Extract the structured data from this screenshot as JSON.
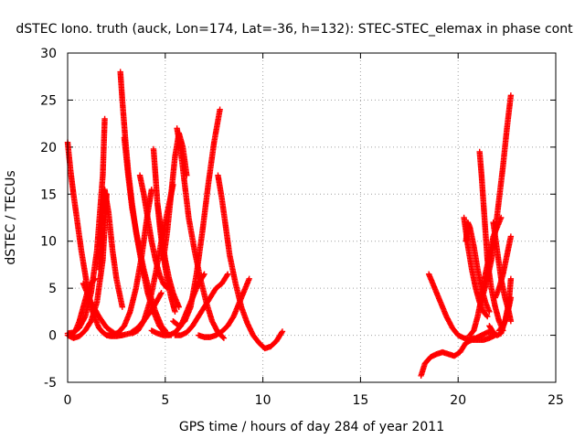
{
  "chart_data": {
    "type": "scatter",
    "title": "dSTEC Iono. truth (auck, Lon=174, Lat=-36, h=132): STEC-STEC_elemax in phase cont",
    "xlabel": "GPS time / hours of day 284 of year 2011",
    "ylabel": "dSTEC  / TECUs",
    "xlim": [
      0,
      25
    ],
    "ylim": [
      -5,
      30
    ],
    "xticks": [
      "0",
      "5",
      "10",
      "15",
      "20",
      "25"
    ],
    "yticks": [
      "-5",
      "0",
      "5",
      "10",
      "15",
      "20",
      "25",
      "30"
    ],
    "grid": true,
    "legend": "none",
    "marker": "plus",
    "color": "#ff0000",
    "series": [
      {
        "x": [
          0.0,
          0.15,
          0.3,
          0.5,
          0.7,
          0.9,
          1.05,
          1.2,
          1.4,
          1.6,
          1.8,
          2.0,
          2.2,
          2.5,
          2.8
        ],
        "y": [
          20.5,
          17.5,
          15.0,
          12.0,
          9.0,
          6.5,
          4.5,
          3.0,
          1.8,
          0.8,
          0.3,
          0.0,
          -0.1,
          -0.1,
          0.0
        ]
      },
      {
        "x": [
          0.0,
          0.3,
          0.6,
          0.9,
          1.2,
          1.5,
          1.8,
          2.0
        ],
        "y": [
          0.0,
          -0.3,
          -0.1,
          0.5,
          1.5,
          3.5,
          8.0,
          15.0
        ]
      },
      {
        "x": [
          1.6,
          1.75,
          1.9,
          2.1,
          2.3,
          2.5,
          2.8
        ],
        "y": [
          7.0,
          12.0,
          15.5,
          13.0,
          9.0,
          6.0,
          3.0
        ]
      },
      {
        "x": [
          0.0,
          0.3,
          0.6,
          0.9,
          1.2,
          1.5,
          1.8,
          1.9
        ],
        "y": [
          0.2,
          0.3,
          0.8,
          2.0,
          4.5,
          9.0,
          17.0,
          23.0
        ]
      },
      {
        "x": [
          0.2,
          0.4,
          0.6,
          0.8,
          1.0,
          1.2,
          1.4
        ],
        "y": [
          0.0,
          0.5,
          1.5,
          3.0,
          4.5,
          5.5,
          6.0
        ]
      },
      {
        "x": [
          0.8,
          1.2,
          1.6,
          2.0,
          2.4,
          2.8,
          3.2,
          3.6,
          4.0,
          4.4,
          4.8
        ],
        "y": [
          5.5,
          3.5,
          2.0,
          0.8,
          0.2,
          0.0,
          0.2,
          0.8,
          1.8,
          3.0,
          4.5
        ]
      },
      {
        "x": [
          2.7,
          2.8,
          2.95,
          3.1,
          3.3,
          3.5,
          3.8,
          4.1,
          4.4,
          4.7,
          5.0,
          5.3
        ],
        "y": [
          28.0,
          25.0,
          21.0,
          17.5,
          14.0,
          11.0,
          7.5,
          4.5,
          2.5,
          1.0,
          0.2,
          0.0
        ]
      },
      {
        "x": [
          2.0,
          2.3,
          2.6,
          2.9,
          3.2,
          3.5,
          3.8,
          4.1,
          4.3
        ],
        "y": [
          0.0,
          0.0,
          0.3,
          1.0,
          2.5,
          5.0,
          8.5,
          13.0,
          15.5
        ]
      },
      {
        "x": [
          2.9,
          3.1,
          3.3,
          3.6,
          3.9,
          4.2,
          4.5,
          4.8,
          5.0
        ],
        "y": [
          21.0,
          17.0,
          13.5,
          10.0,
          7.0,
          4.5,
          2.5,
          1.0,
          0.5
        ]
      },
      {
        "x": [
          4.4,
          4.5,
          4.6,
          4.75,
          4.9,
          5.1,
          5.3,
          5.5
        ],
        "y": [
          19.8,
          17.0,
          14.0,
          11.0,
          8.5,
          6.0,
          4.0,
          2.5
        ]
      },
      {
        "x": [
          3.3,
          3.6,
          3.9,
          4.2,
          4.5,
          4.8,
          5.1,
          5.4
        ],
        "y": [
          0.2,
          0.5,
          1.5,
          3.5,
          6.5,
          10.0,
          13.0,
          16.0
        ]
      },
      {
        "x": [
          3.7,
          3.9,
          4.1,
          4.3,
          4.5,
          4.7,
          4.9,
          5.1
        ],
        "y": [
          17.0,
          15.0,
          12.5,
          10.0,
          8.0,
          6.5,
          5.5,
          5.0
        ]
      },
      {
        "x": [
          4.3,
          4.6,
          4.9,
          5.2,
          5.5,
          5.8,
          6.1,
          6.4,
          6.7,
          7.0
        ],
        "y": [
          0.5,
          0.2,
          0.0,
          0.0,
          0.3,
          1.0,
          2.5,
          4.0,
          5.5,
          6.5
        ]
      },
      {
        "x": [
          4.6,
          4.8,
          5.0,
          5.2,
          5.4,
          5.6,
          5.7
        ],
        "y": [
          14.0,
          11.0,
          8.0,
          6.0,
          4.5,
          3.5,
          3.0
        ]
      },
      {
        "x": [
          4.9,
          5.1,
          5.3,
          5.5,
          5.7,
          5.9,
          6.1
        ],
        "y": [
          8.0,
          11.0,
          15.0,
          19.0,
          21.5,
          20.0,
          17.0
        ]
      },
      {
        "x": [
          5.6,
          5.8,
          6.0,
          6.2,
          6.5,
          6.8,
          7.1,
          7.4,
          7.7,
          8.0
        ],
        "y": [
          22.0,
          19.5,
          16.0,
          12.5,
          9.0,
          6.0,
          3.5,
          1.5,
          0.3,
          -0.3
        ]
      },
      {
        "x": [
          5.4,
          5.7,
          6.0,
          6.3,
          6.6,
          6.9,
          7.2,
          7.5,
          7.8
        ],
        "y": [
          1.5,
          1.0,
          1.5,
          3.0,
          6.5,
          11.0,
          16.0,
          20.5,
          24.0
        ]
      },
      {
        "x": [
          5.5,
          5.8,
          6.1,
          6.4,
          6.7,
          7.0,
          7.3,
          7.6,
          7.9,
          8.2
        ],
        "y": [
          0.0,
          0.0,
          0.3,
          1.0,
          2.0,
          3.0,
          4.0,
          5.0,
          5.5,
          6.5
        ]
      },
      {
        "x": [
          7.7,
          7.9,
          8.1,
          8.3,
          8.6,
          8.9,
          9.2,
          9.5,
          9.8,
          10.1,
          10.4,
          10.7,
          11.0
        ],
        "y": [
          17.0,
          14.5,
          11.5,
          8.5,
          5.5,
          3.0,
          1.3,
          0.0,
          -0.8,
          -1.4,
          -1.2,
          -0.6,
          0.4
        ]
      },
      {
        "x": [
          6.7,
          7.0,
          7.3,
          7.6,
          7.9,
          8.2,
          8.5,
          8.8,
          9.1,
          9.3
        ],
        "y": [
          0.0,
          -0.2,
          -0.2,
          0.0,
          0.4,
          1.0,
          2.0,
          3.5,
          5.0,
          6.0
        ]
      },
      {
        "x": [
          18.1,
          18.3,
          18.6,
          18.9,
          19.2,
          19.5,
          19.8,
          20.1,
          20.4,
          20.7,
          21.0,
          21.3,
          21.6,
          21.9
        ],
        "y": [
          -4.3,
          -3.0,
          -2.3,
          -2.0,
          -1.8,
          -2.0,
          -2.2,
          -1.8,
          -0.8,
          -0.5,
          -0.5,
          -0.5,
          -0.3,
          0.0
        ]
      },
      {
        "x": [
          18.5,
          18.8,
          19.1,
          19.4,
          19.7,
          20.0,
          20.3,
          20.6,
          20.9,
          21.2,
          21.5,
          21.8,
          22.0
        ],
        "y": [
          6.5,
          5.0,
          3.5,
          2.0,
          0.8,
          0.0,
          -0.3,
          -0.4,
          -0.3,
          0.0,
          0.3,
          0.3,
          0.0
        ]
      },
      {
        "x": [
          20.3,
          20.5,
          20.7,
          20.9,
          21.1,
          21.3,
          21.5
        ],
        "y": [
          12.5,
          9.5,
          7.0,
          5.0,
          3.5,
          2.5,
          2.0
        ]
      },
      {
        "x": [
          20.4,
          20.5,
          20.6,
          20.8,
          21.0,
          21.2,
          21.4,
          21.6
        ],
        "y": [
          10.0,
          12.0,
          11.5,
          9.5,
          7.0,
          5.0,
          3.5,
          2.5
        ]
      },
      {
        "x": [
          20.6,
          20.8,
          21.0,
          21.2,
          21.4,
          21.6,
          21.8,
          22.0,
          22.2
        ],
        "y": [
          0.0,
          0.5,
          2.0,
          4.0,
          6.5,
          8.5,
          10.5,
          11.5,
          12.5
        ]
      },
      {
        "x": [
          21.1,
          21.2,
          21.3,
          21.4,
          21.5,
          21.7,
          21.9,
          22.1,
          22.3
        ],
        "y": [
          19.5,
          17.0,
          14.0,
          11.0,
          8.0,
          5.0,
          3.0,
          1.5,
          0.5
        ]
      },
      {
        "x": [
          21.3,
          21.5,
          21.7,
          21.9,
          22.1,
          22.3,
          22.5,
          22.7
        ],
        "y": [
          4.5,
          6.0,
          8.0,
          11.0,
          14.5,
          18.0,
          22.0,
          25.5
        ]
      },
      {
        "x": [
          21.6,
          21.8,
          22.0,
          22.2,
          22.4,
          22.6,
          22.7
        ],
        "y": [
          1.0,
          0.3,
          0.0,
          0.2,
          1.5,
          3.5,
          6.0
        ]
      },
      {
        "x": [
          21.8,
          22.0,
          22.2,
          22.4,
          22.6,
          22.7
        ],
        "y": [
          12.0,
          9.0,
          6.0,
          4.0,
          2.5,
          1.5
        ]
      },
      {
        "x": [
          21.9,
          22.1,
          22.3,
          22.5,
          22.7
        ],
        "y": [
          4.0,
          5.0,
          6.5,
          8.5,
          10.5
        ]
      },
      {
        "x": [
          22.1,
          22.3,
          22.5,
          22.6,
          22.7
        ],
        "y": [
          0.5,
          1.0,
          2.0,
          3.0,
          4.0
        ]
      }
    ]
  }
}
